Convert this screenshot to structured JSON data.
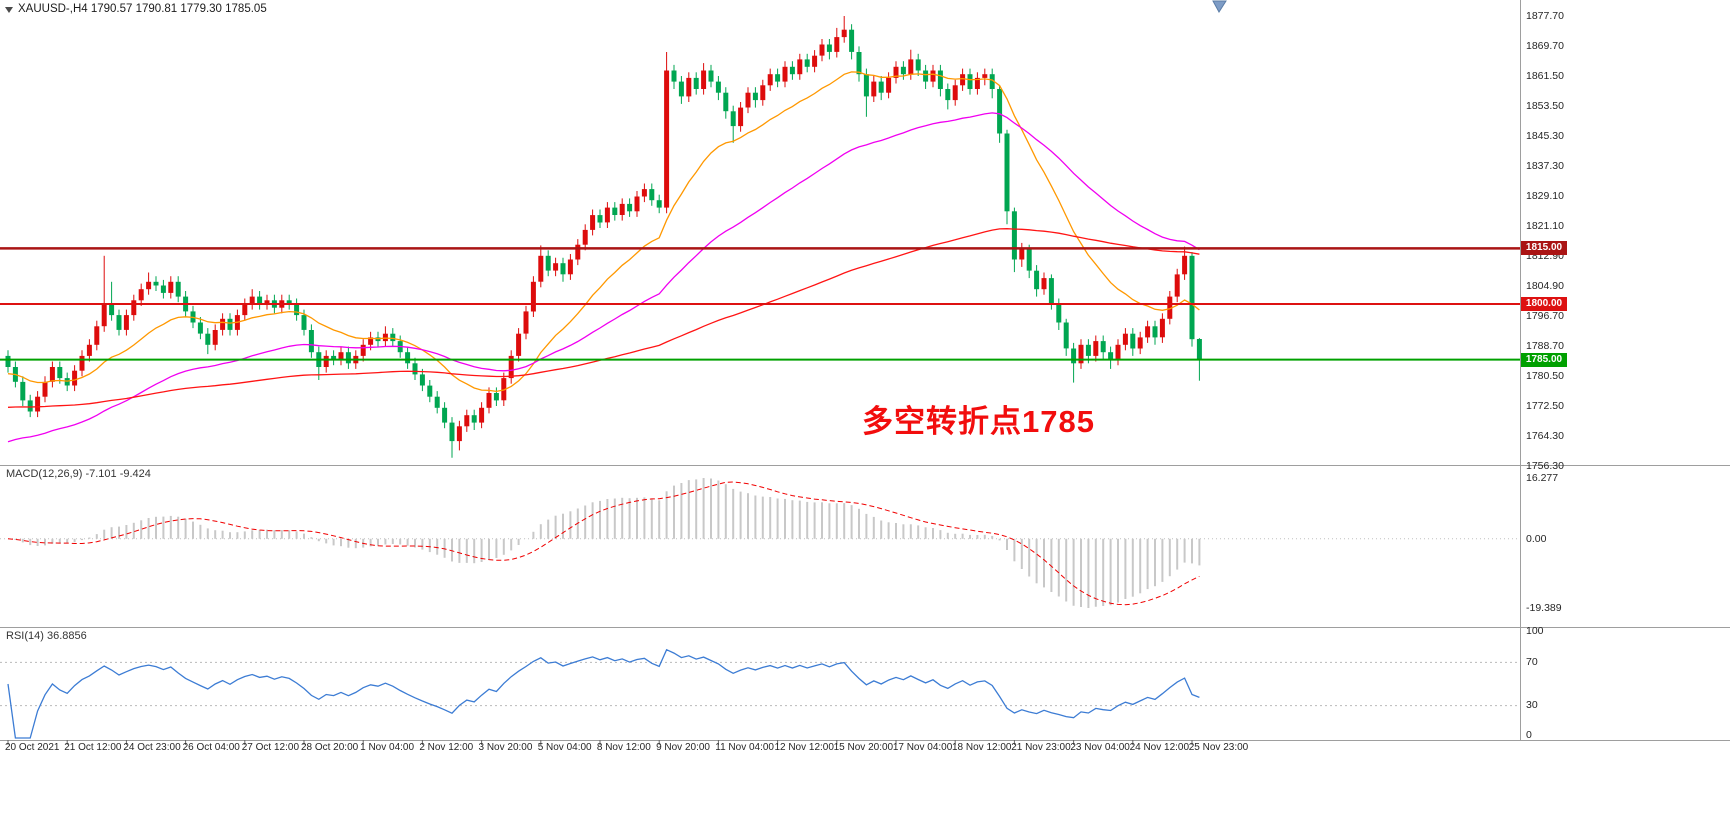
{
  "header": {
    "title": "XAUUSD-,H4 1790.57 1790.81 1779.30 1785.05",
    "symbol": "XAUUSD-",
    "timeframe": "H4"
  },
  "annotation": {
    "text": "多空转折点1785",
    "color": "#f20d0d"
  },
  "chart_data": [
    {
      "type": "candlestick",
      "title": "XAUUSD-,H4",
      "ohlc_display": {
        "open": "1790.57",
        "high": "1790.81",
        "low": "1779.30",
        "close": "1785.05"
      },
      "ylim": [
        1756.3,
        1877.7
      ],
      "up_color": "#dd0c0c",
      "down_color": "#00a651",
      "y_axis_labels": [
        "1877.70",
        "1869.70",
        "1861.50",
        "1853.50",
        "1845.30",
        "1837.30",
        "1829.10",
        "1821.10",
        "1812.90",
        "1804.90",
        "1796.70",
        "1788.70",
        "1780.50",
        "1772.50",
        "1764.30",
        "1756.30"
      ],
      "x_axis_labels": [
        "20 Oct 2021",
        "21 Oct 12:00",
        "24 Oct 23:00",
        "26 Oct 04:00",
        "27 Oct 12:00",
        "28 Oct 20:00",
        "1 Nov 04:00",
        "2 Nov 12:00",
        "3 Nov 20:00",
        "5 Nov 04:00",
        "8 Nov 12:00",
        "9 Nov 20:00",
        "11 Nov 04:00",
        "12 Nov 12:00",
        "15 Nov 20:00",
        "17 Nov 04:00",
        "18 Nov 12:00",
        "21 Nov 23:00",
        "23 Nov 04:00",
        "24 Nov 12:00",
        "25 Nov 23:00"
      ],
      "moving_averages": [
        {
          "name": "fast-ma",
          "color": "#ff9800",
          "period": 18,
          "start_value": 1781
        },
        {
          "name": "medium-ma",
          "color": "#f000f0",
          "period": 50,
          "start_value": 1762
        },
        {
          "name": "slow-ma",
          "color": "#ff1414",
          "period": 160,
          "start_value": 1772
        }
      ],
      "horizontal_lines": [
        {
          "price": 1815.0,
          "label": "1815.00",
          "color": "#aa1414",
          "width": 2.5
        },
        {
          "price": 1800.0,
          "label": "1800.00",
          "color": "#dd1111",
          "width": 2
        },
        {
          "price": 1785.0,
          "label": "1785.00",
          "color": "#00a000",
          "width": 2
        }
      ],
      "candles": [
        [
          1786,
          1787.5,
          1781.5,
          1783
        ],
        [
          1783,
          1784.5,
          1777.5,
          1779
        ],
        [
          1779,
          1780.5,
          1772.5,
          1774
        ],
        [
          1774,
          1775.5,
          1769.5,
          1771
        ],
        [
          1771,
          1776.5,
          1769.5,
          1775
        ],
        [
          1775,
          1780.5,
          1773.5,
          1779
        ],
        [
          1779,
          1784.5,
          1777.5,
          1783
        ],
        [
          1783,
          1784.5,
          1778.5,
          1780
        ],
        [
          1780,
          1781.5,
          1776.5,
          1778
        ],
        [
          1778,
          1783.5,
          1776.5,
          1782
        ],
        [
          1782,
          1787.5,
          1780.5,
          1786
        ],
        [
          1786,
          1790.5,
          1784.5,
          1789
        ],
        [
          1789,
          1795.5,
          1787.5,
          1794
        ],
        [
          1794,
          1813,
          1792.5,
          1800
        ],
        [
          1800,
          1806,
          1795.5,
          1797
        ],
        [
          1797,
          1798.5,
          1791.5,
          1793
        ],
        [
          1793,
          1798.5,
          1791.5,
          1797
        ],
        [
          1797,
          1802.5,
          1795.5,
          1801
        ],
        [
          1801,
          1805.5,
          1799.5,
          1804
        ],
        [
          1804,
          1808.5,
          1802.5,
          1806
        ],
        [
          1806,
          1807.5,
          1803.5,
          1805
        ],
        [
          1805,
          1806.5,
          1801.5,
          1803
        ],
        [
          1803,
          1807.5,
          1801.5,
          1806
        ],
        [
          1806,
          1807.5,
          1800.5,
          1802
        ],
        [
          1802,
          1803.5,
          1796.5,
          1798
        ],
        [
          1798,
          1799.5,
          1793.5,
          1795
        ],
        [
          1795,
          1796.5,
          1790.5,
          1792
        ],
        [
          1792,
          1793.5,
          1786.5,
          1789
        ],
        [
          1789,
          1794.5,
          1787.5,
          1793
        ],
        [
          1793,
          1797.5,
          1791.5,
          1796
        ],
        [
          1796,
          1797.5,
          1791.5,
          1793
        ],
        [
          1793,
          1798.5,
          1791.5,
          1797
        ],
        [
          1797,
          1801.5,
          1795.5,
          1800
        ],
        [
          1800,
          1804,
          1798.5,
          1802
        ],
        [
          1802,
          1803.5,
          1798.5,
          1800
        ],
        [
          1800,
          1802.5,
          1798.5,
          1801
        ],
        [
          1801,
          1802.5,
          1797.5,
          1799
        ],
        [
          1799,
          1802.5,
          1797.5,
          1801
        ],
        [
          1801,
          1802.5,
          1798.5,
          1800
        ],
        [
          1800,
          1801.5,
          1795.5,
          1797
        ],
        [
          1797,
          1798.5,
          1791.5,
          1793
        ],
        [
          1793,
          1794.5,
          1785.5,
          1787
        ],
        [
          1787,
          1788.5,
          1779.5,
          1783
        ],
        [
          1783,
          1787.5,
          1781.5,
          1786
        ],
        [
          1786,
          1787.5,
          1783.5,
          1785
        ],
        [
          1785,
          1788.5,
          1783.5,
          1787
        ],
        [
          1787,
          1788.5,
          1782.5,
          1784
        ],
        [
          1784,
          1787.5,
          1782.5,
          1786
        ],
        [
          1786,
          1790.5,
          1784.5,
          1789
        ],
        [
          1789,
          1792.5,
          1787.5,
          1791
        ],
        [
          1791,
          1792.5,
          1788.5,
          1790
        ],
        [
          1790,
          1794,
          1788.5,
          1792
        ],
        [
          1792,
          1793.5,
          1788.5,
          1790
        ],
        [
          1790,
          1791.5,
          1785.5,
          1787
        ],
        [
          1787,
          1788.5,
          1782.5,
          1784
        ],
        [
          1784,
          1785.5,
          1779.5,
          1781
        ],
        [
          1781,
          1782.5,
          1776.5,
          1778
        ],
        [
          1778,
          1779.5,
          1773.5,
          1775
        ],
        [
          1775,
          1776.5,
          1770.5,
          1772
        ],
        [
          1772,
          1773.5,
          1766.5,
          1768
        ],
        [
          1768,
          1769.5,
          1758.5,
          1763
        ],
        [
          1763,
          1768.5,
          1760.5,
          1767
        ],
        [
          1767,
          1771.5,
          1765.5,
          1770
        ],
        [
          1770,
          1771.5,
          1766,
          1768
        ],
        [
          1768,
          1773.5,
          1766.5,
          1772
        ],
        [
          1772,
          1777.5,
          1770.5,
          1776
        ],
        [
          1776,
          1777.5,
          1772.5,
          1774
        ],
        [
          1774,
          1781.5,
          1772.5,
          1780
        ],
        [
          1780,
          1787.5,
          1778.5,
          1786
        ],
        [
          1786,
          1793.5,
          1784.5,
          1792
        ],
        [
          1792,
          1799.5,
          1790.5,
          1798
        ],
        [
          1798,
          1807.5,
          1796.5,
          1806
        ],
        [
          1806,
          1815.8,
          1804.5,
          1813
        ],
        [
          1813,
          1814.5,
          1807.5,
          1809
        ],
        [
          1809,
          1812.5,
          1807.5,
          1811
        ],
        [
          1811,
          1812.5,
          1806,
          1808
        ],
        [
          1808,
          1813.5,
          1806.5,
          1812
        ],
        [
          1812,
          1817.5,
          1810.5,
          1816
        ],
        [
          1816,
          1821.5,
          1814.5,
          1820
        ],
        [
          1820,
          1825.5,
          1818.5,
          1824
        ],
        [
          1824,
          1825.5,
          1820.5,
          1822
        ],
        [
          1822,
          1827.5,
          1820.5,
          1826
        ],
        [
          1826,
          1827.5,
          1822.5,
          1824
        ],
        [
          1824,
          1828.5,
          1822.5,
          1827
        ],
        [
          1827,
          1828.5,
          1823.5,
          1825
        ],
        [
          1825,
          1830.5,
          1823.5,
          1829
        ],
        [
          1829,
          1832.5,
          1827.5,
          1831
        ],
        [
          1831,
          1832.5,
          1826.5,
          1828
        ],
        [
          1828,
          1829.5,
          1824.5,
          1826
        ],
        [
          1826,
          1868,
          1824.5,
          1863
        ],
        [
          1863,
          1864.5,
          1858,
          1860
        ],
        [
          1860,
          1861.5,
          1854,
          1856
        ],
        [
          1856,
          1862.5,
          1854.5,
          1861
        ],
        [
          1861,
          1862.5,
          1856.5,
          1858
        ],
        [
          1858,
          1865,
          1856.5,
          1863
        ],
        [
          1863,
          1864.5,
          1858.5,
          1860
        ],
        [
          1860,
          1861.5,
          1855,
          1857
        ],
        [
          1857,
          1858.5,
          1850,
          1852
        ],
        [
          1852,
          1853.5,
          1843.5,
          1848
        ],
        [
          1848,
          1854.5,
          1846.5,
          1853
        ],
        [
          1853,
          1858.5,
          1851.5,
          1857
        ],
        [
          1857,
          1858.5,
          1853,
          1855
        ],
        [
          1855,
          1860.5,
          1853.5,
          1859
        ],
        [
          1859,
          1863.5,
          1857.5,
          1862
        ],
        [
          1862,
          1863.5,
          1858.5,
          1860
        ],
        [
          1860,
          1865.5,
          1858.5,
          1864
        ],
        [
          1864,
          1865.5,
          1860.5,
          1862
        ],
        [
          1862,
          1867.5,
          1860.5,
          1866
        ],
        [
          1866,
          1867.5,
          1862.5,
          1864
        ],
        [
          1864,
          1868.5,
          1862.5,
          1867
        ],
        [
          1867,
          1871.5,
          1865.5,
          1870
        ],
        [
          1870,
          1871.5,
          1866,
          1868
        ],
        [
          1868,
          1874.5,
          1866.5,
          1872
        ],
        [
          1872,
          1877.7,
          1870.5,
          1874
        ],
        [
          1874,
          1875.5,
          1866,
          1868
        ],
        [
          1868,
          1869.5,
          1860,
          1862
        ],
        [
          1862,
          1863.5,
          1850.5,
          1856
        ],
        [
          1856,
          1861.5,
          1854.5,
          1860
        ],
        [
          1860,
          1861.5,
          1855,
          1857
        ],
        [
          1857,
          1862.5,
          1855.5,
          1861
        ],
        [
          1861,
          1865.5,
          1859.5,
          1864
        ],
        [
          1864,
          1865.5,
          1860.5,
          1862
        ],
        [
          1862,
          1868.6,
          1860.5,
          1866
        ],
        [
          1866,
          1867.5,
          1861.5,
          1863
        ],
        [
          1863,
          1864.5,
          1858,
          1860
        ],
        [
          1860,
          1864.5,
          1858.5,
          1863
        ],
        [
          1863,
          1864.5,
          1856,
          1858
        ],
        [
          1858,
          1859.5,
          1852.5,
          1855
        ],
        [
          1855,
          1860.5,
          1853.5,
          1859
        ],
        [
          1859,
          1863.5,
          1857.5,
          1862
        ],
        [
          1862,
          1863.5,
          1856.5,
          1858
        ],
        [
          1858,
          1862.5,
          1856.5,
          1861
        ],
        [
          1861,
          1863.5,
          1859,
          1862
        ],
        [
          1862,
          1863.5,
          1855.5,
          1858
        ],
        [
          1858,
          1859,
          1843.5,
          1846
        ],
        [
          1846,
          1847,
          1821.5,
          1825
        ],
        [
          1825,
          1826,
          1808.6,
          1812
        ],
        [
          1812,
          1816.5,
          1810,
          1815
        ],
        [
          1815,
          1816,
          1807,
          1809
        ],
        [
          1809,
          1810.5,
          1802,
          1804
        ],
        [
          1804,
          1808.5,
          1802.5,
          1807
        ],
        [
          1807,
          1808,
          1798.5,
          1800
        ],
        [
          1800,
          1801.5,
          1793,
          1795
        ],
        [
          1795,
          1796,
          1786,
          1788
        ],
        [
          1788,
          1789.5,
          1778.8,
          1784
        ],
        [
          1784,
          1790.5,
          1782.5,
          1789
        ],
        [
          1789,
          1790.5,
          1784,
          1786
        ],
        [
          1786,
          1791.5,
          1784.5,
          1790
        ],
        [
          1790,
          1791.5,
          1785,
          1787
        ],
        [
          1787,
          1788.5,
          1782.5,
          1785
        ],
        [
          1785,
          1790.5,
          1783.5,
          1789
        ],
        [
          1789,
          1793.5,
          1787.5,
          1792
        ],
        [
          1792,
          1793.5,
          1786,
          1788
        ],
        [
          1788,
          1792.5,
          1786.5,
          1791
        ],
        [
          1791,
          1795.5,
          1789.5,
          1794
        ],
        [
          1794,
          1795.5,
          1789,
          1791
        ],
        [
          1791,
          1797.5,
          1789.5,
          1796
        ],
        [
          1796,
          1803.5,
          1794.5,
          1802
        ],
        [
          1802,
          1809.5,
          1800.5,
          1808
        ],
        [
          1808,
          1815.5,
          1806.5,
          1813
        ],
        [
          1813,
          1814,
          1788.5,
          1790.5
        ],
        [
          1790.57,
          1790.81,
          1779.3,
          1785.05
        ]
      ]
    },
    {
      "type": "macd",
      "label": "MACD(12,26,9) -7.101 -9.424",
      "params": [
        12,
        26,
        9
      ],
      "main_value": "-7.101",
      "signal_value": "-9.424",
      "axis_labels": [
        "16.277",
        "0.00",
        "-19.389"
      ],
      "histogram_color": "#c8c8c8",
      "signal_color": "#f00000"
    },
    {
      "type": "rsi",
      "label": "RSI(14) 36.8856",
      "period": 14,
      "value": "36.8856",
      "axis_labels": [
        "100",
        "70",
        "30",
        "0"
      ],
      "levels": [
        70,
        30
      ],
      "line_color": "#3c7cd4"
    }
  ]
}
